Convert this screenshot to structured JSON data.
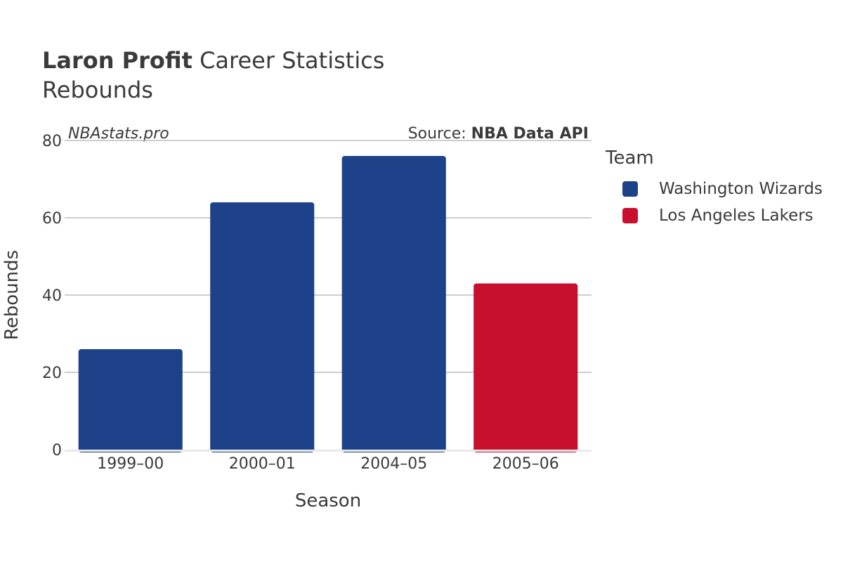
{
  "header": {
    "player": "Laron Profit",
    "title_rest": " Career Statistics",
    "subtitle": "Rebounds"
  },
  "watermark": "NBAstats.pro",
  "source": {
    "prefix": "Source: ",
    "name": "NBA Data API"
  },
  "legend": {
    "title": "Team",
    "items": [
      {
        "label": "Washington Wizards",
        "color": "#1d428a"
      },
      {
        "label": "Los Angeles Lakers",
        "color": "#c8102e"
      }
    ]
  },
  "chart_data": {
    "type": "bar",
    "title": "Laron Profit Career Statistics",
    "subtitle": "Rebounds",
    "xlabel": "Season",
    "ylabel": "Rebounds",
    "categories": [
      "1999–00",
      "2000–01",
      "2004–05",
      "2005–06"
    ],
    "values": [
      26,
      64,
      76,
      43
    ],
    "teams": [
      "Washington Wizards",
      "Washington Wizards",
      "Washington Wizards",
      "Los Angeles Lakers"
    ],
    "bar_colors": [
      "#1d428a",
      "#1d428a",
      "#1d428a",
      "#c8102e"
    ],
    "ylim": [
      0,
      80
    ],
    "yticks": [
      0,
      20,
      40,
      60,
      80
    ],
    "grid": true,
    "legend_position": "right"
  }
}
